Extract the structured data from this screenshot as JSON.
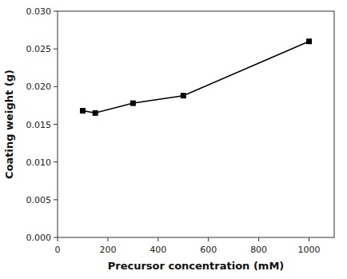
{
  "chart_data": {
    "type": "line",
    "x": [
      100,
      150,
      300,
      500,
      1000
    ],
    "values": [
      0.0168,
      0.0165,
      0.0178,
      0.0188,
      0.026
    ],
    "xlabel": "Precursor concentration (mM)",
    "ylabel": "Coating weight (g)",
    "xlim": [
      0,
      1100
    ],
    "ylim": [
      0,
      0.03
    ],
    "xticks": [
      0,
      200,
      400,
      600,
      800,
      1000
    ],
    "yticks": [
      {
        "value": 0,
        "label": "0.000"
      },
      0.005,
      {
        "value": 0.01,
        "label": "0.010"
      },
      0.015,
      {
        "value": 0.02,
        "label": "0.020"
      },
      0.025,
      {
        "value": 0.03,
        "label": "0.030"
      }
    ],
    "color": "black",
    "marker": "square"
  }
}
